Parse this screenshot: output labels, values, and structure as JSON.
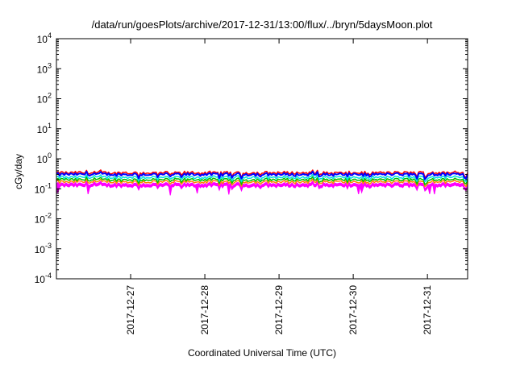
{
  "chart_data": {
    "type": "line",
    "title": "/data/run/goesPlots/archive/2017-12-31/13:00/flux/../bryn/5daysMoon.plot",
    "xlabel": "Coordinated Universal Time (UTC)",
    "ylabel": "cGy/day",
    "y_scale": "log",
    "ylim": [
      0.0001,
      10000
    ],
    "y_ticks": [
      {
        "base": "10",
        "exp": "-4",
        "value": 0.0001
      },
      {
        "base": "10",
        "exp": "-3",
        "value": 0.001
      },
      {
        "base": "10",
        "exp": "-2",
        "value": 0.01
      },
      {
        "base": "10",
        "exp": "-1",
        "value": 0.1
      },
      {
        "base": "10",
        "exp": "0",
        "value": 1
      },
      {
        "base": "10",
        "exp": "1",
        "value": 10
      },
      {
        "base": "10",
        "exp": "2",
        "value": 100
      },
      {
        "base": "10",
        "exp": "3",
        "value": 1000
      },
      {
        "base": "10",
        "exp": "4",
        "value": 10000
      }
    ],
    "xlim": [
      "2017-12-26T00:00",
      "2017-12-31T13:00"
    ],
    "x_ticks": [
      "2017-12-27",
      "2017-12-28",
      "2017-12-29",
      "2017-12-30",
      "2017-12-31"
    ],
    "grid": false,
    "legend": "none",
    "series": [
      {
        "color": "#ff00ff",
        "style": "filled-band",
        "baseline": 0.14,
        "values": [
          0.14,
          0.15,
          0.13,
          0.15,
          0.14,
          0.08,
          0.15,
          0.14,
          0.13,
          0.07,
          0.14,
          0.15,
          0.14,
          0.08,
          0.15,
          0.14,
          0.13,
          0.15,
          0.07,
          0.14,
          0.15,
          0.14,
          0.13,
          0.15,
          0.14,
          0.11,
          0.15,
          0.14,
          0.13,
          0.14
        ]
      },
      {
        "color": "#ff8000",
        "style": "line",
        "baseline": 0.17
      },
      {
        "color": "#00c000",
        "style": "line",
        "baseline": 0.2
      },
      {
        "color": "#00e0e0",
        "style": "line",
        "baseline": 0.24
      },
      {
        "color": "#ff0000",
        "style": "line",
        "baseline": 0.34
      },
      {
        "color": "#0000ff",
        "style": "line",
        "baseline": 0.3
      }
    ]
  }
}
